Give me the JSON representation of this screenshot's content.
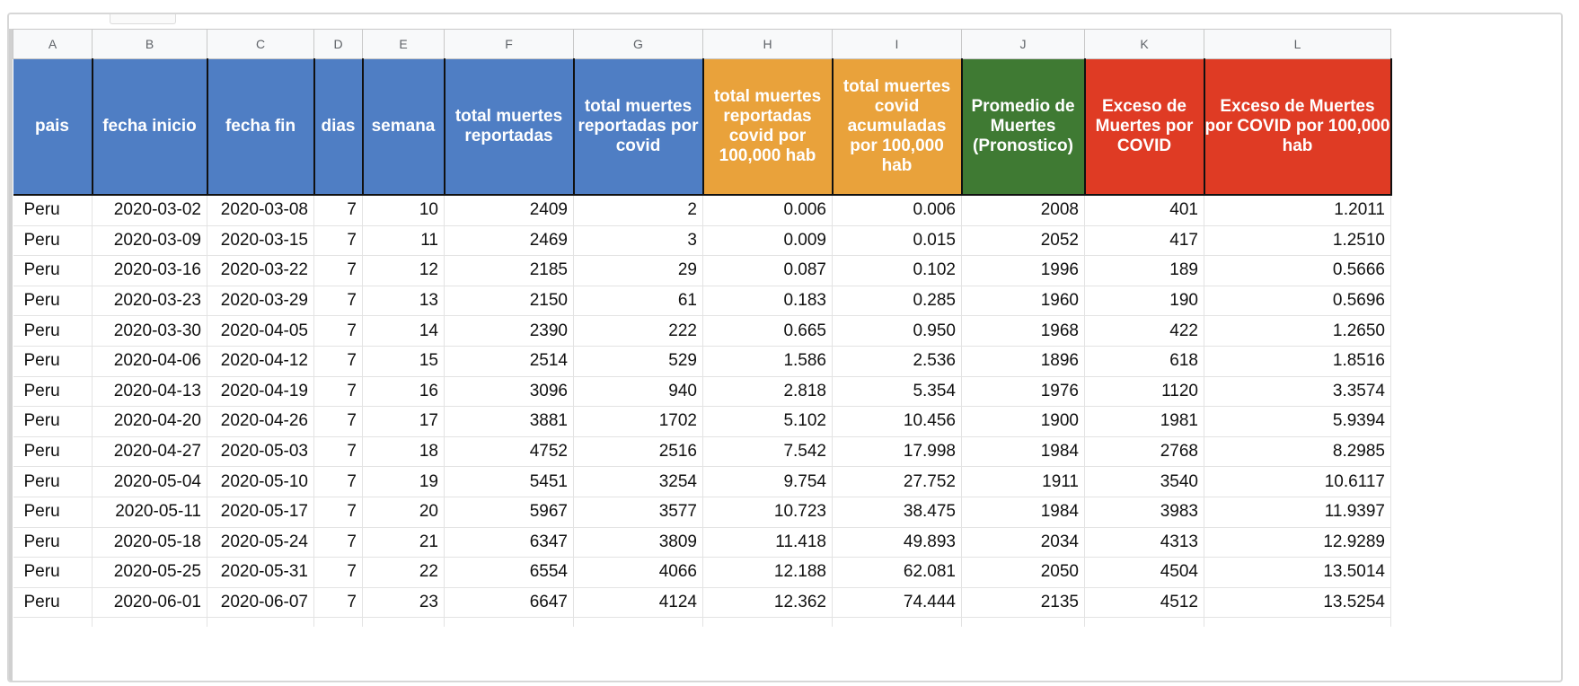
{
  "spreadsheet": {
    "column_letters": [
      "A",
      "B",
      "C",
      "D",
      "E",
      "F",
      "G",
      "H",
      "I",
      "J",
      "K",
      "L"
    ],
    "headers": [
      {
        "label": "pais",
        "color": "blue"
      },
      {
        "label": "fecha inicio",
        "color": "blue"
      },
      {
        "label": "fecha fin",
        "color": "blue"
      },
      {
        "label": "dias",
        "color": "blue"
      },
      {
        "label": "semana",
        "color": "blue"
      },
      {
        "label": "total muertes reportadas",
        "color": "blue"
      },
      {
        "label": "total muertes reportadas por covid",
        "color": "blue"
      },
      {
        "label": "total muertes reportadas covid por 100,000 hab",
        "color": "orange"
      },
      {
        "label": "total muertes covid acumuladas por 100,000 hab",
        "color": "orange"
      },
      {
        "label": "Promedio de Muertes (Pronostico)",
        "color": "green"
      },
      {
        "label": "Exceso de Muertes por COVID",
        "color": "red"
      },
      {
        "label": "Exceso de Muertes por COVID por 100,000 hab",
        "color": "red"
      }
    ],
    "colors": {
      "blue": "#4f7ec4",
      "orange": "#e9a23b",
      "green": "#3f7a33",
      "red": "#df3b24"
    },
    "rows": [
      [
        "Peru",
        "2020-03-02",
        "2020-03-08",
        "7",
        "10",
        "2409",
        "2",
        "0.006",
        "0.006",
        "2008",
        "401",
        "1.2011"
      ],
      [
        "Peru",
        "2020-03-09",
        "2020-03-15",
        "7",
        "11",
        "2469",
        "3",
        "0.009",
        "0.015",
        "2052",
        "417",
        "1.2510"
      ],
      [
        "Peru",
        "2020-03-16",
        "2020-03-22",
        "7",
        "12",
        "2185",
        "29",
        "0.087",
        "0.102",
        "1996",
        "189",
        "0.5666"
      ],
      [
        "Peru",
        "2020-03-23",
        "2020-03-29",
        "7",
        "13",
        "2150",
        "61",
        "0.183",
        "0.285",
        "1960",
        "190",
        "0.5696"
      ],
      [
        "Peru",
        "2020-03-30",
        "2020-04-05",
        "7",
        "14",
        "2390",
        "222",
        "0.665",
        "0.950",
        "1968",
        "422",
        "1.2650"
      ],
      [
        "Peru",
        "2020-04-06",
        "2020-04-12",
        "7",
        "15",
        "2514",
        "529",
        "1.586",
        "2.536",
        "1896",
        "618",
        "1.8516"
      ],
      [
        "Peru",
        "2020-04-13",
        "2020-04-19",
        "7",
        "16",
        "3096",
        "940",
        "2.818",
        "5.354",
        "1976",
        "1120",
        "3.3574"
      ],
      [
        "Peru",
        "2020-04-20",
        "2020-04-26",
        "7",
        "17",
        "3881",
        "1702",
        "5.102",
        "10.456",
        "1900",
        "1981",
        "5.9394"
      ],
      [
        "Peru",
        "2020-04-27",
        "2020-05-03",
        "7",
        "18",
        "4752",
        "2516",
        "7.542",
        "17.998",
        "1984",
        "2768",
        "8.2985"
      ],
      [
        "Peru",
        "2020-05-04",
        "2020-05-10",
        "7",
        "19",
        "5451",
        "3254",
        "9.754",
        "27.752",
        "1911",
        "3540",
        "10.6117"
      ],
      [
        "Peru",
        "2020-05-11",
        "2020-05-17",
        "7",
        "20",
        "5967",
        "3577",
        "10.723",
        "38.475",
        "1984",
        "3983",
        "11.9397"
      ],
      [
        "Peru",
        "2020-05-18",
        "2020-05-24",
        "7",
        "21",
        "6347",
        "3809",
        "11.418",
        "49.893",
        "2034",
        "4313",
        "12.9289"
      ],
      [
        "Peru",
        "2020-05-25",
        "2020-05-31",
        "7",
        "22",
        "6554",
        "4066",
        "12.188",
        "62.081",
        "2050",
        "4504",
        "13.5014"
      ],
      [
        "Peru",
        "2020-06-01",
        "2020-06-07",
        "7",
        "23",
        "6647",
        "4124",
        "12.362",
        "74.444",
        "2135",
        "4512",
        "13.5254"
      ]
    ]
  }
}
